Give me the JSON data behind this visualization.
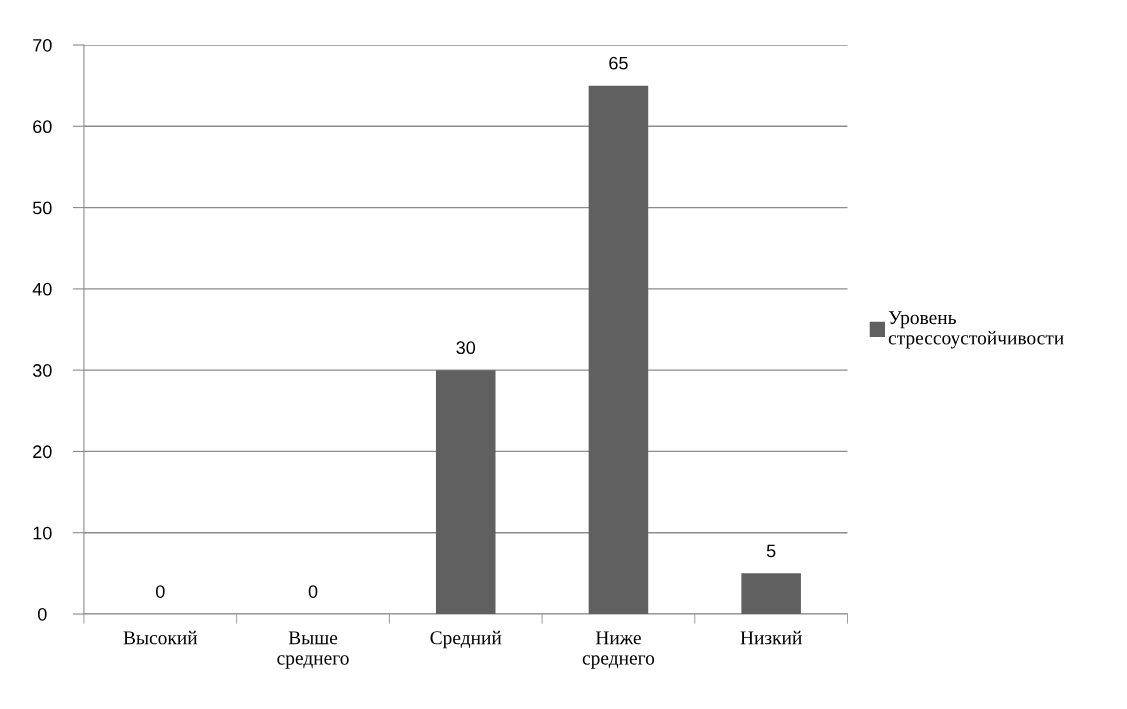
{
  "chart_data": {
    "type": "bar",
    "categories": [
      "Высокий",
      "Выше среднего",
      "Средний",
      "Ниже среднего",
      "Низкий"
    ],
    "series": [
      {
        "name": "Уровень стрессоустойчивости",
        "color": "#606060",
        "values": [
          0,
          0,
          30,
          65,
          5
        ]
      }
    ],
    "ylim": [
      0,
      70
    ],
    "yticks": [
      0,
      10,
      20,
      30,
      40,
      50,
      60,
      70
    ],
    "grid": "y",
    "legend": "right",
    "data_labels": true
  }
}
